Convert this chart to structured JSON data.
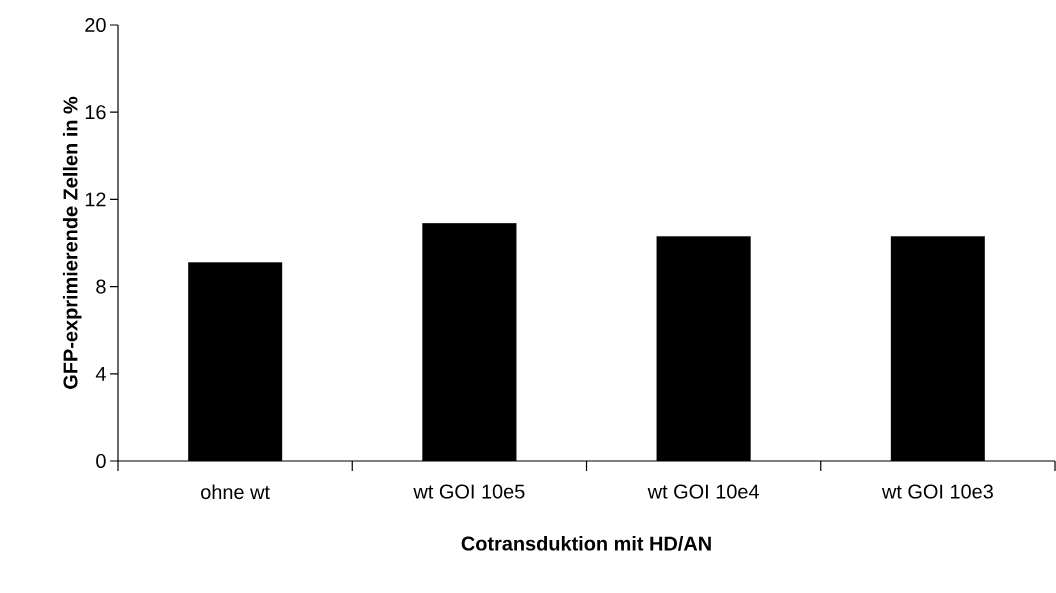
{
  "chart_data": {
    "type": "bar",
    "xlabel": "Cotransduktion mit HD/AN",
    "ylabel": "GFP-exprimierende Zellen in %",
    "categories": [
      "ohne wt",
      "wt GOI 10e5",
      "wt GOI 10e4",
      "wt GOI 10e3"
    ],
    "values": [
      9.1,
      10.9,
      10.3,
      10.3
    ],
    "color": "#000000",
    "ylim": [
      0,
      20
    ],
    "yticks": [
      0,
      4,
      8,
      12,
      16,
      20
    ],
    "grid": false
  }
}
